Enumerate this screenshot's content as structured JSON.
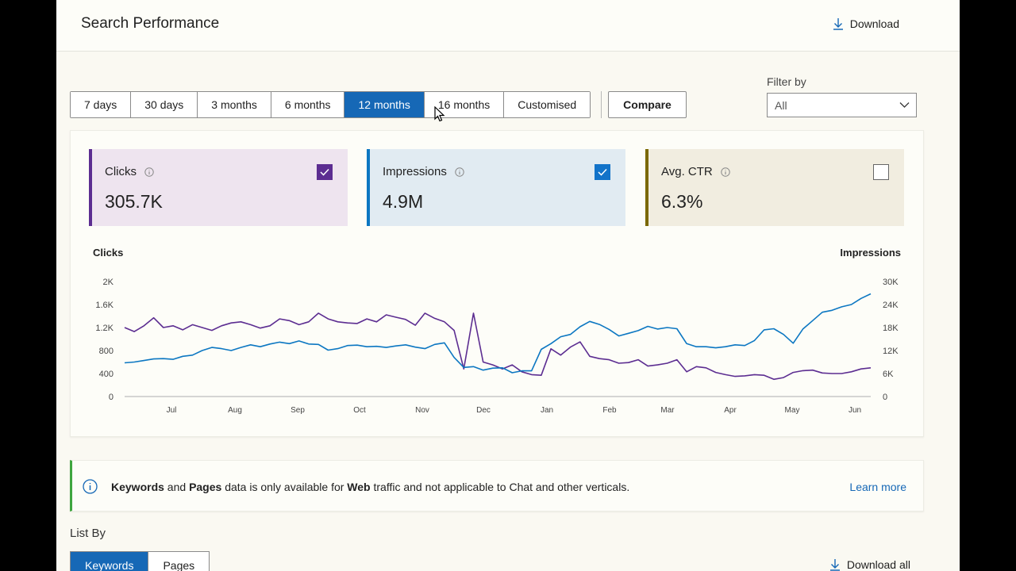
{
  "header": {
    "title": "Search Performance",
    "download_label": "Download"
  },
  "ranges": [
    {
      "label": "7 days",
      "active": false
    },
    {
      "label": "30 days",
      "active": false
    },
    {
      "label": "3 months",
      "active": false
    },
    {
      "label": "6 months",
      "active": false
    },
    {
      "label": "12 months",
      "active": true
    },
    {
      "label": "16 months",
      "active": false
    },
    {
      "label": "Customised",
      "active": false
    }
  ],
  "compare_label": "Compare",
  "filter": {
    "label": "Filter by",
    "value": "All"
  },
  "metrics": {
    "clicks": {
      "label": "Clicks",
      "value": "305.7K",
      "checked": true,
      "color": "#5c2d91"
    },
    "impressions": {
      "label": "Impressions",
      "value": "4.9M",
      "checked": true,
      "color": "#0c77c2"
    },
    "ctr": {
      "label": "Avg. CTR",
      "value": "6.3%",
      "checked": false,
      "color": "#7a6800"
    }
  },
  "chart_data": {
    "type": "line",
    "y_left_label": "Clicks",
    "y_right_label": "Impressions",
    "y_left_ticks": [
      "2K",
      "1.6K",
      "1.2K",
      "800",
      "400",
      "0"
    ],
    "y_right_ticks": [
      "30K",
      "24K",
      "18K",
      "12K",
      "6K",
      "0"
    ],
    "y_left_range": [
      0,
      2000
    ],
    "y_right_range": [
      0,
      30000
    ],
    "x_ticks": [
      "Jul",
      "Aug",
      "Sep",
      "Oct",
      "Nov",
      "Dec",
      "Jan",
      "Feb",
      "Mar",
      "Apr",
      "May",
      "Jun"
    ],
    "series": [
      {
        "name": "Clicks",
        "axis": "left",
        "color": "#5c2d91",
        "values": [
          1200,
          1130,
          1230,
          1370,
          1200,
          1230,
          1160,
          1250,
          1200,
          1150,
          1230,
          1280,
          1300,
          1250,
          1190,
          1230,
          1350,
          1320,
          1250,
          1300,
          1450,
          1350,
          1300,
          1280,
          1270,
          1350,
          1300,
          1420,
          1380,
          1340,
          1240,
          1450,
          1360,
          1300,
          1150,
          480,
          1450,
          600,
          550,
          480,
          550,
          430,
          380,
          370,
          830,
          720,
          860,
          950,
          700,
          660,
          640,
          580,
          590,
          640,
          530,
          550,
          580,
          640,
          430,
          520,
          500,
          420,
          380,
          350,
          360,
          380,
          370,
          300,
          330,
          420,
          450,
          460,
          410,
          400,
          400,
          430,
          480,
          500
        ]
      },
      {
        "name": "Impressions",
        "axis": "right",
        "color": "#0c77c2",
        "values": [
          8800,
          9000,
          9400,
          9800,
          9900,
          9700,
          10500,
          10800,
          12000,
          12800,
          12500,
          12000,
          12800,
          13500,
          13000,
          13700,
          14200,
          13800,
          14500,
          13700,
          13600,
          12100,
          12500,
          13300,
          13400,
          13000,
          13100,
          12800,
          13200,
          13500,
          12900,
          12500,
          13600,
          14000,
          10200,
          7600,
          7800,
          6900,
          7400,
          7500,
          6200,
          6700,
          6700,
          12300,
          13800,
          15600,
          16200,
          18200,
          19600,
          18800,
          17500,
          15800,
          16500,
          17200,
          18300,
          17600,
          18000,
          17700,
          13800,
          13000,
          13000,
          12700,
          13000,
          13500,
          13300,
          14600,
          17400,
          17700,
          16200,
          13900,
          17600,
          19800,
          22000,
          22500,
          23400,
          24000,
          25600,
          26800
        ]
      }
    ]
  },
  "notice": {
    "part1": "Keywords",
    "part2": " and ",
    "part3": "Pages",
    "part4": " data is only available for ",
    "part5": "Web",
    "part6": " traffic and not applicable to Chat and other verticals.",
    "learn_more": "Learn more"
  },
  "list_by": {
    "label": "List By",
    "tabs": [
      {
        "label": "Keywords",
        "active": true
      },
      {
        "label": "Pages",
        "active": false
      }
    ],
    "download_all": "Download all"
  }
}
